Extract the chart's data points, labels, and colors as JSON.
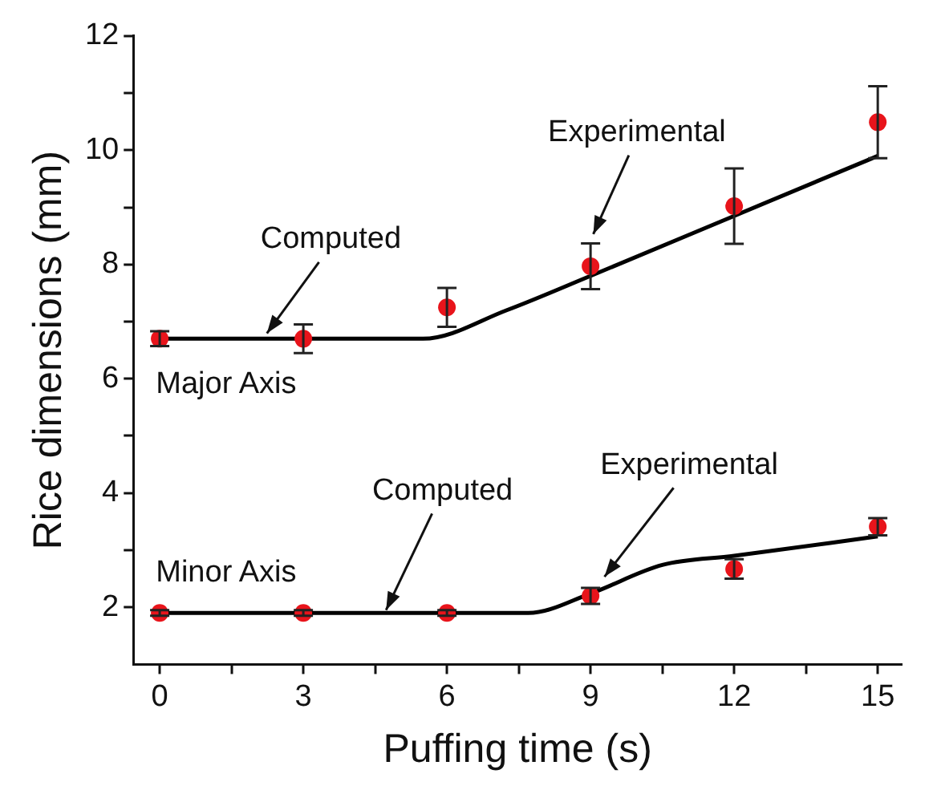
{
  "chart_data": {
    "type": "scatter",
    "xlabel": "Puffing time (s)",
    "ylabel": "Rice dimensions (mm)",
    "xlim": [
      -0.55,
      15.5
    ],
    "ylim": [
      1,
      12
    ],
    "xticks": [
      0,
      {
        "value": 1.5,
        "label": null
      },
      3,
      {
        "value": 4.5,
        "label": null
      },
      6,
      {
        "value": 7.5,
        "label": null
      },
      9,
      {
        "value": 10.5,
        "label": null
      },
      12,
      {
        "value": 13.5,
        "label": null
      },
      15
    ],
    "yticks": [
      2,
      {
        "value": 3,
        "label": null
      },
      4,
      {
        "value": 5,
        "label": null
      },
      6,
      {
        "value": 7,
        "label": null
      },
      8,
      {
        "value": 9,
        "label": null
      },
      10,
      {
        "value": 11,
        "label": null
      },
      12
    ],
    "series": [
      {
        "marker": "circle",
        "color": "#e8141b",
        "x": [
          0,
          3,
          6,
          9,
          12,
          15
        ],
        "values": [
          6.7,
          6.7,
          7.25,
          7.97,
          9.02,
          10.49
        ],
        "errors": [
          0.13,
          0.25,
          0.34,
          0.4,
          0.66,
          0.63
        ]
      },
      {
        "type": "line",
        "marker": "none",
        "color": "#000000",
        "x": [
          0,
          5.5,
          7.25,
          9,
          12,
          15
        ],
        "values": [
          6.7,
          6.7,
          7.2,
          7.8,
          8.85,
          9.9
        ]
      },
      {
        "marker": "circle",
        "color": "#e8141b",
        "x": [
          0,
          3,
          6,
          9,
          12,
          15
        ],
        "values": [
          1.9,
          1.9,
          1.9,
          2.2,
          2.67,
          3.41
        ],
        "errors": [
          0.05,
          0.05,
          0.05,
          0.14,
          0.17,
          0.15
        ]
      },
      {
        "type": "line",
        "marker": "none",
        "color": "#000000",
        "x": [
          0,
          7.7,
          9,
          10.5,
          12,
          15
        ],
        "values": [
          1.9,
          1.9,
          2.24,
          2.74,
          2.9,
          3.24
        ]
      }
    ],
    "annotations": [
      {
        "text": "Computed",
        "x": 2.2,
        "y": 6.75
      },
      {
        "text": "Experimental",
        "x": 9.03,
        "y": 8.48
      },
      "Major Axis",
      {
        "text": "Computed",
        "x": 4.7,
        "y": 1.9
      },
      {
        "text": "Experimental",
        "x": 9.25,
        "y": 2.49
      },
      "Minor Axis"
    ]
  }
}
